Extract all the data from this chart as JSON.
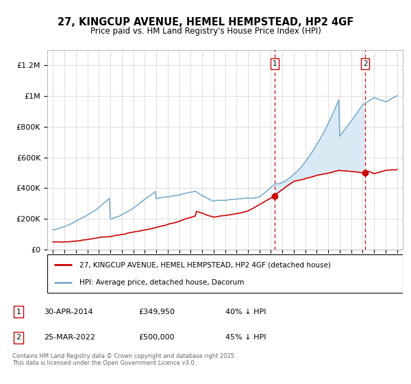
{
  "title": "27, KINGCUP AVENUE, HEMEL HEMPSTEAD, HP2 4GF",
  "subtitle": "Price paid vs. HM Land Registry's House Price Index (HPI)",
  "legend_property": "27, KINGCUP AVENUE, HEMEL HEMPSTEAD, HP2 4GF (detached house)",
  "legend_hpi": "HPI: Average price, detached house, Dacorum",
  "sale1_date": "30-APR-2014",
  "sale1_price": "£349,950",
  "sale1_hpi_diff": "40% ↓ HPI",
  "sale1_year": 2014.33,
  "sale1_value": 349950,
  "sale2_date": "25-MAR-2022",
  "sale2_price": "£500,000",
  "sale2_hpi_diff": "45% ↓ HPI",
  "sale2_year": 2022.23,
  "sale2_value": 500000,
  "property_color": "#cc0000",
  "hpi_color": "#7aadcf",
  "fill_color": "#daeaf5",
  "vline_color": "#cc0000",
  "ylim": [
    0,
    1300000
  ],
  "xlim": [
    1994.5,
    2025.5
  ],
  "footer": "Contains HM Land Registry data © Crown copyright and database right 2025.\nThis data is licensed under the Open Government Licence v3.0.",
  "yticks": [
    0,
    200000,
    400000,
    600000,
    800000,
    1000000,
    1200000
  ],
  "ytick_labels": [
    "£0",
    "£200K",
    "£400K",
    "£600K",
    "£800K",
    "£1M",
    "£1.2M"
  ],
  "xticks": [
    1995,
    1996,
    1997,
    1998,
    1999,
    2000,
    2001,
    2002,
    2003,
    2004,
    2005,
    2006,
    2007,
    2008,
    2009,
    2010,
    2011,
    2012,
    2013,
    2014,
    2015,
    2016,
    2017,
    2018,
    2019,
    2020,
    2021,
    2022,
    2023,
    2024,
    2025
  ]
}
